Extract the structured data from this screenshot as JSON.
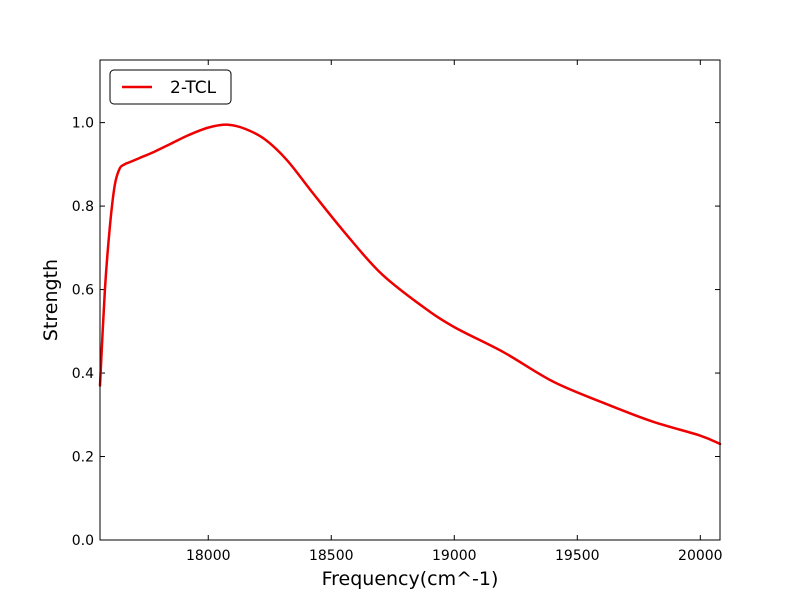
{
  "chart_data": {
    "type": "line",
    "title": "",
    "xlabel": "Frequency(cm^-1)",
    "ylabel": "Strength",
    "xlim": [
      17560,
      20080
    ],
    "ylim": [
      0.0,
      1.15
    ],
    "xticks": [
      18000,
      18500,
      19000,
      19500,
      20000
    ],
    "yticks": [
      0.0,
      0.2,
      0.4,
      0.6,
      0.8,
      1.0
    ],
    "xtick_labels": [
      "18000",
      "18500",
      "19000",
      "19500",
      "20000"
    ],
    "ytick_labels": [
      "0.0",
      "0.2",
      "0.4",
      "0.6",
      "0.8",
      "1.0"
    ],
    "grid": false,
    "legend": {
      "position": "top-left"
    },
    "series": [
      {
        "name": "2-TCL",
        "color": "#ee0000",
        "x": [
          17560,
          17580,
          17600,
          17620,
          17640,
          17660,
          17680,
          17720,
          17780,
          17850,
          17920,
          18000,
          18080,
          18150,
          18230,
          18320,
          18420,
          18550,
          18700,
          18870,
          19000,
          19200,
          19400,
          19600,
          19800,
          20000,
          20080
        ],
        "y": [
          0.37,
          0.6,
          0.75,
          0.85,
          0.89,
          0.9,
          0.905,
          0.915,
          0.93,
          0.95,
          0.97,
          0.988,
          0.995,
          0.985,
          0.96,
          0.91,
          0.835,
          0.74,
          0.64,
          0.56,
          0.51,
          0.45,
          0.38,
          0.33,
          0.285,
          0.25,
          0.23
        ]
      }
    ]
  }
}
